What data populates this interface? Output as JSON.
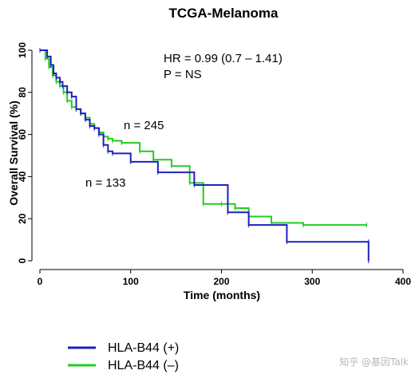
{
  "chart_data": {
    "type": "line",
    "title": "TCGA-Melanoma",
    "xlabel": "Time (months)",
    "ylabel": "Overall Survival (%)",
    "xlim": [
      0,
      400
    ],
    "ylim": [
      0,
      100
    ],
    "xticks": [
      0,
      100,
      200,
      300,
      400
    ],
    "yticks": [
      0,
      20,
      40,
      60,
      80,
      100
    ],
    "grid": false,
    "legend_position": "bottom-left",
    "annotations": [
      "HR = 0.99 (0.7 – 1.41)",
      "P = NS",
      "n = 245",
      "n = 133"
    ],
    "series": [
      {
        "name": "HLA-B44 (+)",
        "color": "#1f1fbf",
        "x": [
          0,
          8,
          12,
          15,
          18,
          22,
          25,
          30,
          35,
          40,
          45,
          50,
          55,
          60,
          65,
          70,
          75,
          80,
          100,
          130,
          170,
          207,
          230,
          272,
          362,
          362
        ],
        "y": [
          100,
          97,
          93,
          89,
          87,
          85,
          83,
          80,
          78,
          72,
          70,
          67,
          64,
          63,
          60,
          55,
          52,
          51,
          47,
          42,
          36,
          23,
          17,
          9,
          9,
          0
        ]
      },
      {
        "name": "HLA-B44 (–)",
        "color": "#22cc22",
        "x": [
          0,
          6,
          10,
          14,
          18,
          22,
          26,
          30,
          35,
          40,
          45,
          50,
          55,
          60,
          65,
          70,
          75,
          80,
          90,
          110,
          125,
          145,
          165,
          180,
          200,
          215,
          230,
          255,
          290,
          360
        ],
        "y": [
          100,
          96,
          92,
          88,
          85,
          83,
          80,
          76,
          73,
          72,
          70,
          68,
          65,
          63,
          61,
          59,
          58,
          57,
          56,
          52,
          48,
          45,
          37,
          27,
          27,
          25,
          21,
          18,
          17,
          17
        ]
      }
    ]
  },
  "watermark": "知乎 @基因Talk"
}
